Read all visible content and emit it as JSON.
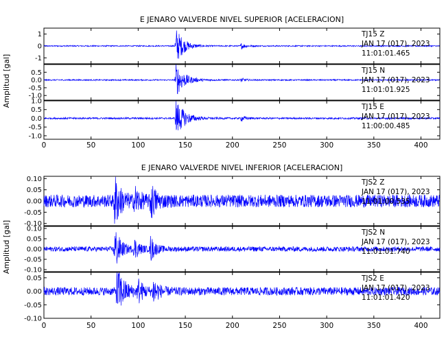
{
  "chart_data": [
    {
      "type": "line",
      "title": "E JENARO VALVERDE NIVEL SUPERIOR [ACELERACION]",
      "ylabel": "Amplitud [gal]",
      "xlim": [
        0,
        420
      ],
      "x_ticks": [
        "0",
        "50",
        "100",
        "150",
        "200",
        "250",
        "300",
        "350",
        "400"
      ],
      "trace_color": "#0000ff",
      "series": [
        {
          "name": "TJ15 Z",
          "station": "TJ15",
          "component": "Z",
          "date": "JAN 17 (017), 2023",
          "time": "11:01:01.465",
          "ylim": [
            -1.5,
            1.5
          ],
          "y_ticks": [
            "1",
            "0",
            "-1"
          ],
          "y_tick_values": [
            1,
            0,
            -1
          ],
          "noise_amp": 0.05,
          "events": [
            {
              "t": 140,
              "peak": 1.6,
              "decay": 8
            },
            {
              "t": 209,
              "peak": 0.25,
              "decay": 5
            }
          ]
        },
        {
          "name": "TJ15 N",
          "station": "TJ15",
          "component": "N",
          "date": "JAN 17 (017), 2023",
          "time": "11:01:01.925",
          "ylim": [
            -1.3,
            1.0
          ],
          "y_ticks": [
            "0.5",
            "0.0",
            "-0.5",
            "-1.0"
          ],
          "y_tick_values": [
            0.5,
            0,
            -0.5,
            -1.0
          ],
          "noise_amp": 0.04,
          "events": [
            {
              "t": 140,
              "peak": 1.1,
              "decay": 9
            },
            {
              "t": 209,
              "peak": 0.12,
              "decay": 5
            }
          ]
        },
        {
          "name": "TJ15 E",
          "station": "TJ15",
          "component": "E",
          "date": "JAN 17 (017), 2023",
          "time": "11:00:00.485",
          "ylim": [
            -1.2,
            1.0
          ],
          "y_ticks": [
            "1.0",
            "0.5",
            "0.0",
            "-0.5",
            "-1.0"
          ],
          "y_tick_values": [
            1.0,
            0.5,
            0,
            -0.5,
            -1.0
          ],
          "noise_amp": 0.05,
          "events": [
            {
              "t": 140,
              "peak": 1.1,
              "decay": 9
            },
            {
              "t": 209,
              "peak": 0.15,
              "decay": 5
            }
          ]
        }
      ]
    },
    {
      "type": "line",
      "title": "E JENARO VALVERDE NIVEL INFERIOR [ACELERACION]",
      "ylabel": "Amplitud [gal]",
      "xlim": [
        0,
        420
      ],
      "x_ticks": [
        "0",
        "50",
        "100",
        "150",
        "200",
        "250",
        "300",
        "350",
        "400"
      ],
      "trace_color": "#0000ff",
      "series": [
        {
          "name": "TJS2 Z",
          "station": "TJS2",
          "component": "Z",
          "date": "JAN 17 (017), 2023",
          "time": "11:01:00.535",
          "ylim": [
            -0.11,
            0.11
          ],
          "y_ticks": [
            "0.10",
            "0.05",
            "0.00",
            "-0.05",
            "-0.10"
          ],
          "y_tick_values": [
            0.1,
            0.05,
            0,
            -0.05,
            -0.1
          ],
          "noise_amp": 0.028,
          "events": [
            {
              "t": 75,
              "peak": 0.11,
              "decay": 6
            },
            {
              "t": 96,
              "peak": 0.06,
              "decay": 5
            },
            {
              "t": 113,
              "peak": 0.08,
              "decay": 5
            }
          ]
        },
        {
          "name": "TJS2 N",
          "station": "TJS2",
          "component": "N",
          "date": "JAN 17 (017), 2023",
          "time": "11:01:01.740",
          "ylim": [
            -0.11,
            0.11
          ],
          "y_ticks": [
            "0.10",
            "0.05",
            "0.00",
            "-0.05",
            "-0.10"
          ],
          "y_tick_values": [
            0.1,
            0.05,
            0,
            -0.05,
            -0.1
          ],
          "noise_amp": 0.012,
          "events": [
            {
              "t": 75,
              "peak": 0.11,
              "decay": 6
            },
            {
              "t": 96,
              "peak": 0.05,
              "decay": 5
            },
            {
              "t": 113,
              "peak": 0.06,
              "decay": 5
            }
          ]
        },
        {
          "name": "TJS2 E",
          "station": "TJS2",
          "component": "E",
          "date": "JAN 17 (017), 2023",
          "time": "11:01:01.420",
          "ylim": [
            -0.1,
            0.07
          ],
          "y_ticks": [
            "0.05",
            "0.00",
            "-0.05",
            "-0.10"
          ],
          "y_tick_values": [
            0.05,
            0,
            -0.05,
            -0.1
          ],
          "noise_amp": 0.015,
          "events": [
            {
              "t": 77,
              "peak": 0.1,
              "decay": 7
            },
            {
              "t": 100,
              "peak": 0.04,
              "decay": 5
            },
            {
              "t": 116,
              "peak": 0.05,
              "decay": 5
            }
          ]
        }
      ]
    }
  ]
}
